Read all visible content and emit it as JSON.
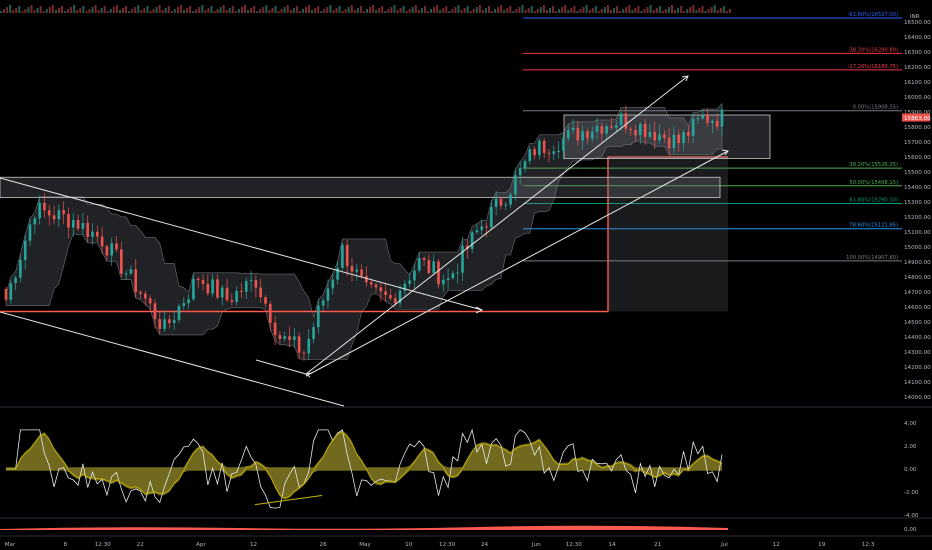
{
  "chart_data": {
    "type": "candlestick",
    "currency": "INR",
    "price_axis": {
      "min": 13900,
      "max": 16700,
      "ticks": [
        "16500.00",
        "16400.00",
        "16300.00",
        "16200.00",
        "16100.00",
        "16000.00",
        "15900.00",
        "15800.00",
        "15700.00",
        "15600.00",
        "15500.00",
        "15400.00",
        "15300.00",
        "15200.00",
        "15100.00",
        "15000.00",
        "14900.00",
        "14800.00",
        "14700.00",
        "14600.00",
        "14500.00",
        "14400.00",
        "14300.00",
        "14200.00",
        "14100.00",
        "14000.00"
      ],
      "ticks_values": [
        16500,
        16400,
        16300,
        16200,
        16100,
        16000,
        15900,
        15800,
        15700,
        15600,
        15500,
        15400,
        15300,
        15200,
        15100,
        15000,
        14900,
        14800,
        14700,
        14600,
        14500,
        14400,
        14300,
        14200,
        14100,
        14000
      ],
      "last_price_label": "15863.00",
      "last_price": 15863
    },
    "time_axis": {
      "labels": [
        "Mar",
        "8",
        "12:30",
        "22",
        "Apr",
        "12",
        "26",
        "May",
        "10",
        "12:30",
        "24",
        "Jun",
        "12:30",
        "14",
        "21",
        "Jul",
        "12",
        "19",
        "12:3"
      ],
      "label_pos": [
        0.0,
        0.062,
        0.104,
        0.146,
        0.214,
        0.273,
        0.351,
        0.398,
        0.447,
        0.49,
        0.532,
        0.59,
        0.632,
        0.675,
        0.726,
        0.801,
        0.859,
        0.91,
        0.962
      ]
    },
    "fibonacci": [
      {
        "label": "-61.80%(16527.00)",
        "value": 16527,
        "color": "#2962ff"
      },
      {
        "label": "-38.20%(16290.80)",
        "value": 16290.8,
        "color": "#f23645"
      },
      {
        "label": "-27.20%(16180.75)",
        "value": 16180.75,
        "color": "#f23645"
      },
      {
        "label": "0.00%(15908.55)",
        "value": 15908.55,
        "color": "#787b86"
      },
      {
        "label": "38.20%(15526.25)",
        "value": 15526.25,
        "color": "#4caf50"
      },
      {
        "label": "50.00%(15408.15)",
        "value": 15408.15,
        "color": "#4caf50"
      },
      {
        "label": "61.80%(15290.10)",
        "value": 15290.1,
        "color": "#089981"
      },
      {
        "label": "78.60%(15121.95)",
        "value": 15121.95,
        "color": "#2196f3"
      },
      {
        "label": "100.00%(14907.80)",
        "value": 14907.8,
        "color": "#787b86"
      }
    ],
    "candle_series": {
      "up_color": "#26a69a",
      "down_color": "#ef5350",
      "start": 14720,
      "seed": 7,
      "count": 150,
      "closes_anchor": [
        [
          0,
          14650
        ],
        [
          6,
          15250
        ],
        [
          14,
          15180
        ],
        [
          20,
          15050
        ],
        [
          28,
          14700
        ],
        [
          33,
          14450
        ],
        [
          40,
          14800
        ],
        [
          46,
          14650
        ],
        [
          52,
          14780
        ],
        [
          57,
          14400
        ],
        [
          62,
          14300
        ],
        [
          66,
          14650
        ],
        [
          70,
          14980
        ],
        [
          75,
          14700
        ],
        [
          80,
          14650
        ],
        [
          86,
          14900
        ],
        [
          92,
          14780
        ],
        [
          98,
          15100
        ],
        [
          104,
          15350
        ],
        [
          110,
          15650
        ],
        [
          116,
          15720
        ],
        [
          122,
          15800
        ],
        [
          128,
          15850
        ],
        [
          134,
          15780
        ],
        [
          140,
          15700
        ],
        [
          145,
          15860
        ],
        [
          149,
          15863
        ]
      ]
    },
    "oscillator": {
      "ticks": [
        "4.00",
        "2.00",
        "0.00",
        "-2.00",
        "-4.00"
      ],
      "ticks_values": [
        4,
        2,
        0,
        -2,
        -4
      ]
    },
    "volume_oscillator": {
      "ticks": [
        "0.00"
      ],
      "ticks_values": [
        0
      ]
    }
  }
}
